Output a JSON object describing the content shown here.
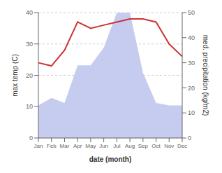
{
  "chart_data": {
    "type": "line",
    "xlabel": "date (month)",
    "ylabel": "max temp (C)",
    "y2label": "med. precipitation (kg/m2)",
    "categories": [
      "Jan",
      "Feb",
      "Mar",
      "Apr",
      "May",
      "Jun",
      "Jul",
      "Aug",
      "Sep",
      "Oct",
      "Nov",
      "Dec"
    ],
    "series": [
      {
        "type": "area",
        "axis": "y2",
        "color": "#c5ccf0",
        "values": [
          13,
          16,
          14,
          29,
          29,
          36,
          50,
          50,
          26,
          14,
          13,
          13
        ]
      },
      {
        "type": "line",
        "color": "#cc3333",
        "values": [
          24,
          23,
          28,
          37,
          35,
          36,
          37,
          38,
          38,
          37,
          30,
          26
        ]
      }
    ],
    "ylim": [
      0,
      40
    ],
    "yticks": [
      0,
      10,
      20,
      30,
      40
    ],
    "y2lim": [
      0,
      50
    ],
    "y2ticks": [
      0,
      10,
      20,
      30,
      40,
      50
    ],
    "grid": true
  }
}
